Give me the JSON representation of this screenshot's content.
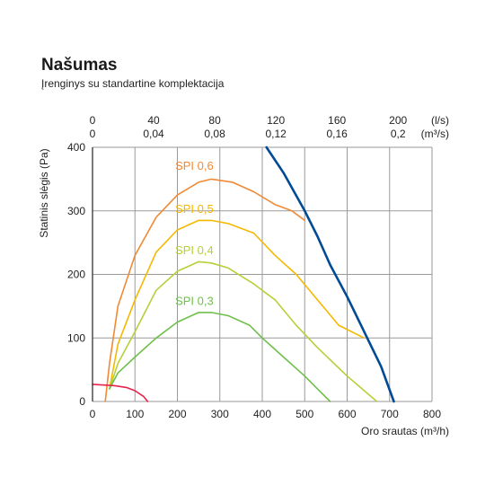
{
  "title": "Našumas",
  "subtitle": "Įrenginys su standartine komplektacija",
  "colors": {
    "grid": "#9a9a9a",
    "axis": "#222222",
    "spi06": "#f08a35",
    "spi05": "#f5b800",
    "spi04": "#b7cf38",
    "spi03": "#6fbf4b",
    "fan": "#004a96",
    "red": "#e8234a"
  },
  "chart_data": {
    "type": "line",
    "xlabel": "Oro srautas (m³/h)",
    "ylabel": "Statinis slėgis (Pa)",
    "xlim": [
      0,
      800
    ],
    "ylim": [
      0,
      400
    ],
    "x_ticks": [
      "0",
      "100",
      "200",
      "300",
      "400",
      "500",
      "600",
      "700",
      "800"
    ],
    "y_ticks": [
      "0",
      "100",
      "200",
      "300",
      "400"
    ],
    "top_axis_ls": {
      "unit": "(l/s)",
      "ticks": [
        "0",
        "40",
        "80",
        "120",
        "160",
        "200"
      ],
      "values": [
        0,
        40,
        80,
        120,
        160,
        200
      ]
    },
    "top_axis_m3s": {
      "unit": "(m³/s)",
      "ticks": [
        "0",
        "0,04",
        "0,08",
        "0,12",
        "0,16",
        "0,2"
      ],
      "values": [
        0,
        0.04,
        0.08,
        0.12,
        0.16,
        0.2
      ]
    },
    "grid": true,
    "series": [
      {
        "key": "spi06",
        "color_key": "spi06",
        "name": "SPI 0,6",
        "points": [
          [
            30,
            0
          ],
          [
            40,
            60
          ],
          [
            60,
            150
          ],
          [
            100,
            230
          ],
          [
            150,
            290
          ],
          [
            200,
            325
          ],
          [
            250,
            345
          ],
          [
            280,
            350
          ],
          [
            330,
            345
          ],
          [
            380,
            330
          ],
          [
            430,
            310
          ],
          [
            470,
            300
          ],
          [
            500,
            285
          ]
        ]
      },
      {
        "key": "spi05",
        "color_key": "spi05",
        "name": "SPI 0,5",
        "points": [
          [
            40,
            20
          ],
          [
            60,
            90
          ],
          [
            100,
            160
          ],
          [
            150,
            235
          ],
          [
            200,
            270
          ],
          [
            250,
            285
          ],
          [
            280,
            285
          ],
          [
            320,
            280
          ],
          [
            380,
            265
          ],
          [
            430,
            230
          ],
          [
            480,
            200
          ],
          [
            530,
            160
          ],
          [
            580,
            120
          ],
          [
            640,
            100
          ]
        ]
      },
      {
        "key": "spi04",
        "color_key": "spi04",
        "name": "SPI 0,4",
        "points": [
          [
            40,
            20
          ],
          [
            60,
            60
          ],
          [
            100,
            110
          ],
          [
            150,
            175
          ],
          [
            200,
            205
          ],
          [
            250,
            220
          ],
          [
            280,
            218
          ],
          [
            320,
            210
          ],
          [
            380,
            185
          ],
          [
            430,
            160
          ],
          [
            480,
            120
          ],
          [
            530,
            85
          ],
          [
            600,
            40
          ],
          [
            670,
            0
          ]
        ]
      },
      {
        "key": "spi03",
        "color_key": "spi03",
        "name": "SPI 0,3",
        "points": [
          [
            40,
            20
          ],
          [
            60,
            45
          ],
          [
            100,
            70
          ],
          [
            150,
            100
          ],
          [
            200,
            125
          ],
          [
            250,
            140
          ],
          [
            280,
            140
          ],
          [
            320,
            135
          ],
          [
            370,
            120
          ],
          [
            400,
            100
          ],
          [
            450,
            70
          ],
          [
            500,
            40
          ],
          [
            530,
            20
          ],
          [
            560,
            0
          ]
        ]
      },
      {
        "key": "fan",
        "color_key": "fan",
        "name": "",
        "points": [
          [
            410,
            400
          ],
          [
            450,
            360
          ],
          [
            500,
            300
          ],
          [
            530,
            260
          ],
          [
            560,
            215
          ],
          [
            600,
            165
          ],
          [
            640,
            110
          ],
          [
            680,
            55
          ],
          [
            710,
            0
          ]
        ]
      },
      {
        "key": "red",
        "color_key": "red",
        "name": "",
        "points": [
          [
            0,
            27
          ],
          [
            50,
            25
          ],
          [
            80,
            22
          ],
          [
            100,
            17
          ],
          [
            120,
            8
          ],
          [
            130,
            0
          ]
        ]
      }
    ]
  }
}
